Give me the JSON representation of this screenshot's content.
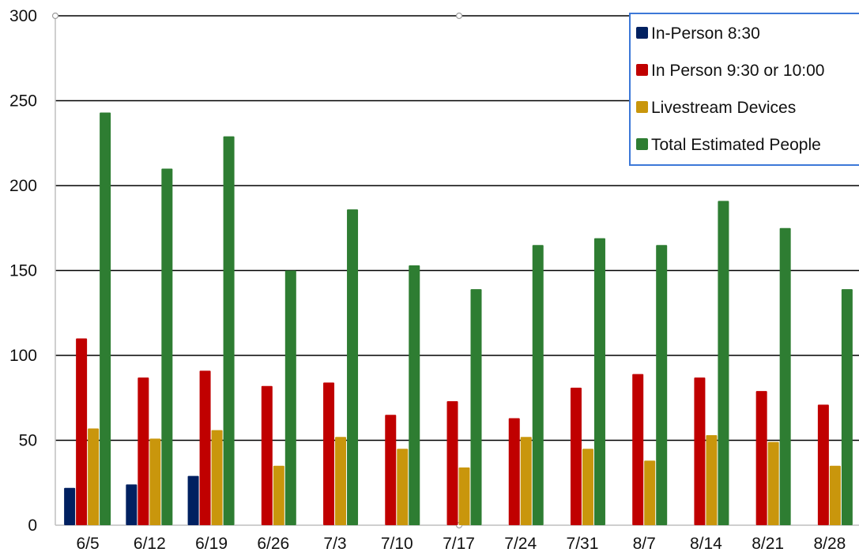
{
  "chart_data": {
    "type": "bar",
    "title": "",
    "xlabel": "",
    "ylabel": "",
    "ylim": [
      0,
      300
    ],
    "yticks": [
      0,
      50,
      100,
      150,
      200,
      250,
      300
    ],
    "grid": true,
    "legend_position": "top-right",
    "categories": [
      "6/5",
      "6/12",
      "6/19",
      "6/26",
      "7/3",
      "7/10",
      "7/17",
      "7/24",
      "7/31",
      "8/7",
      "8/14",
      "8/21",
      "8/28"
    ],
    "series": [
      {
        "name": "In-Person 8:30",
        "color": "#002060",
        "values": [
          22,
          24,
          29,
          null,
          null,
          null,
          null,
          null,
          null,
          null,
          null,
          null,
          null
        ]
      },
      {
        "name": "In Person 9:30 or 10:00",
        "color": "#c00000",
        "values": [
          110,
          87,
          91,
          82,
          84,
          65,
          73,
          63,
          81,
          89,
          87,
          79,
          71
        ]
      },
      {
        "name": "Livestream Devices",
        "color": "#c9960c",
        "values": [
          57,
          51,
          56,
          35,
          52,
          45,
          34,
          52,
          45,
          38,
          53,
          49,
          35
        ]
      },
      {
        "name": "Total Estimated People",
        "color": "#2e7d32",
        "values": [
          243,
          210,
          229,
          150,
          186,
          153,
          139,
          165,
          169,
          165,
          191,
          175,
          139
        ]
      }
    ]
  }
}
